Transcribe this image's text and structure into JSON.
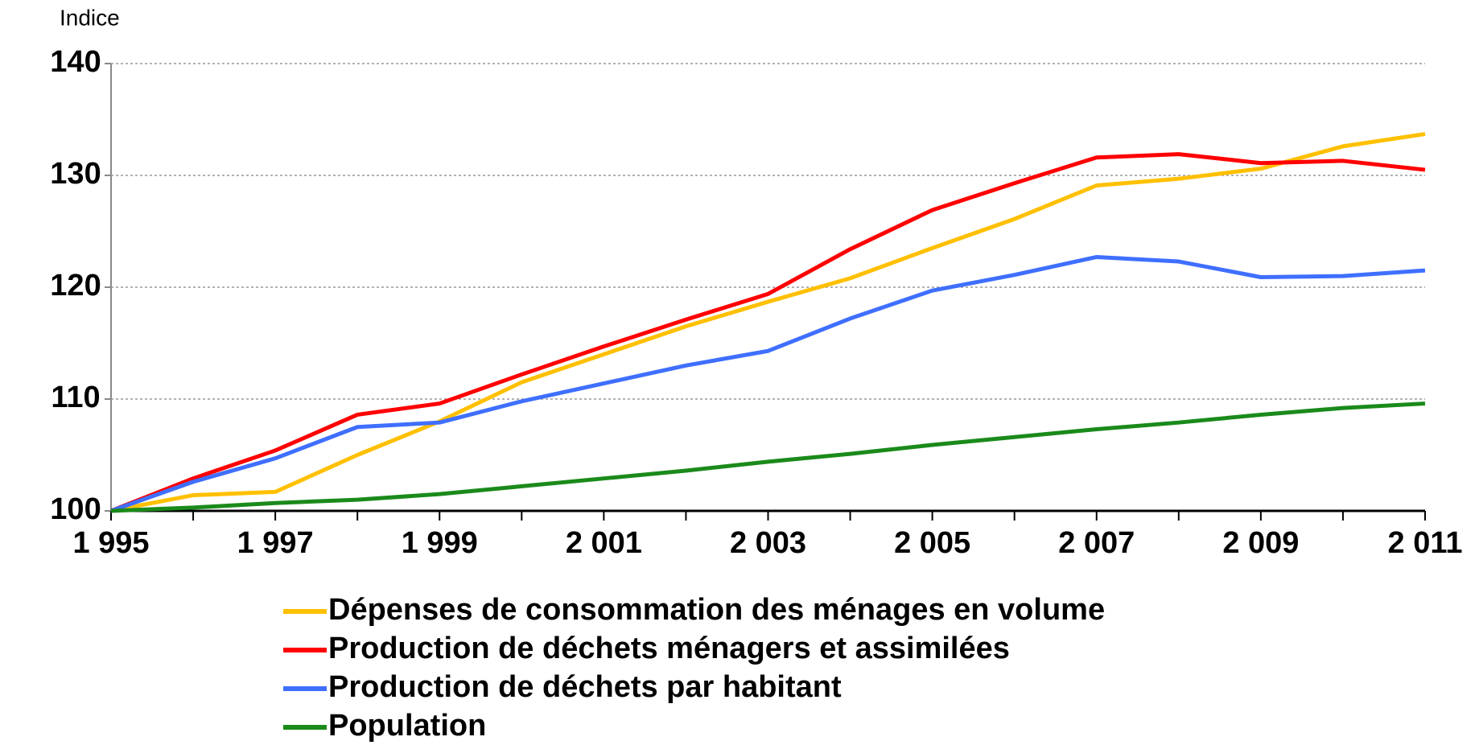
{
  "chart_data": {
    "type": "line",
    "ylabel": "Indice",
    "x": [
      1995,
      1996,
      1997,
      1998,
      1999,
      2000,
      2001,
      2002,
      2003,
      2004,
      2005,
      2006,
      2007,
      2008,
      2009,
      2010,
      2011
    ],
    "series": [
      {
        "name": "Dépenses de consommation des ménages en volume",
        "color": "#ffc000",
        "values": [
          100,
          101.4,
          101.7,
          105,
          108,
          111.5,
          114,
          116.5,
          118.7,
          120.8,
          123.5,
          126.1,
          129.1,
          129.7,
          130.6,
          132.6,
          133.7
        ]
      },
      {
        "name": "Production de déchets ménagers et assimilées",
        "color": "#ff0000",
        "values": [
          100,
          102.9,
          105.4,
          108.6,
          109.6,
          112.2,
          114.7,
          117.1,
          119.4,
          123.4,
          126.9,
          129.3,
          131.6,
          131.9,
          131.1,
          131.3,
          130.5
        ]
      },
      {
        "name": "Production de déchets par habitant",
        "color": "#3f6fff",
        "values": [
          100,
          102.6,
          104.7,
          107.5,
          107.9,
          109.8,
          111.4,
          113,
          114.3,
          117.2,
          119.7,
          121.1,
          122.7,
          122.3,
          120.9,
          121,
          121.5
        ]
      },
      {
        "name": "Population",
        "color": "#1a8a1a",
        "values": [
          100,
          100.3,
          100.7,
          101,
          101.5,
          102.2,
          102.9,
          103.6,
          104.4,
          105.1,
          105.9,
          106.6,
          107.3,
          107.9,
          108.6,
          109.2,
          109.6
        ]
      }
    ],
    "xlim": [
      1995,
      2011
    ],
    "xticks": [
      {
        "value": 1995,
        "label": "1 995"
      },
      {
        "value": 1997,
        "label": "1 997"
      },
      {
        "value": 1999,
        "label": "1 999"
      },
      {
        "value": 2001,
        "label": "2 001"
      },
      {
        "value": 2003,
        "label": "2 003"
      },
      {
        "value": 2005,
        "label": "2 005"
      },
      {
        "value": 2007,
        "label": "2 007"
      },
      {
        "value": 2009,
        "label": "2 009"
      },
      {
        "value": 2011,
        "label": "2 011"
      }
    ],
    "ylim": [
      100,
      140
    ],
    "yticks": [
      100,
      110,
      120,
      130,
      140
    ],
    "grid": true
  }
}
